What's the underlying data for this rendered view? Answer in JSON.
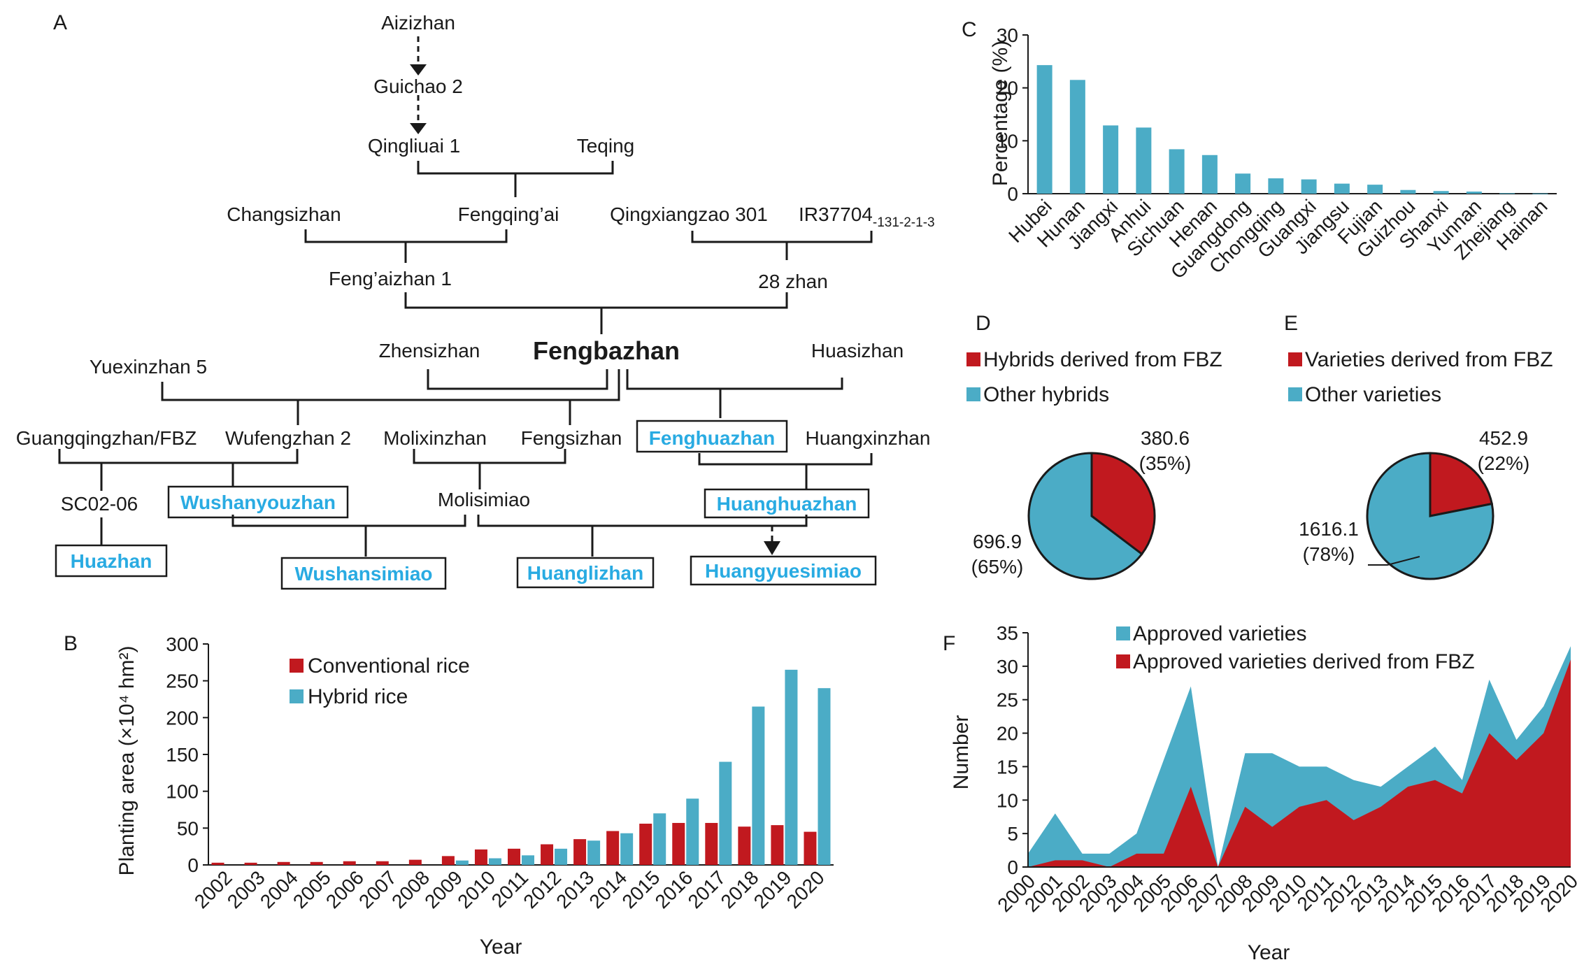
{
  "colors": {
    "red": "#c1191f",
    "blue": "#4bacc6",
    "highlight": "#29abe2",
    "line": "#1a1a1a"
  },
  "panels": {
    "A": "A",
    "B": "B",
    "C": "C",
    "D": "D",
    "E": "E",
    "F": "F"
  },
  "pedigree": {
    "root": "Fengbazhan",
    "nodes": {
      "aizizhan": "Aizizhan",
      "guichao2": "Guichao 2",
      "qingliuai1": "Qingliuai 1",
      "teqing": "Teqing",
      "changsizhan": "Changsizhan",
      "fengqingai": "Fengqing’ai",
      "qingxiangzao301": "Qingxiangzao 301",
      "ir37704": "IR37704",
      "ir37704_sub": "-131-2-1-3",
      "fengaizhan1": "Feng’aizhan 1",
      "zhan28": "28 zhan",
      "zhensizhan": "Zhensizhan",
      "huasizhan": "Huasizhan",
      "yuexinzhan5": "Yuexinzhan 5",
      "guangqingzhan": "Guangqingzhan/FBZ",
      "wufengzhan2": "Wufengzhan 2",
      "molixinzhan": "Molixinzhan",
      "fengsizhan": "Fengsizhan",
      "fenghuazhan": "Fenghuazhan",
      "huangxinzhan": "Huangxinzhan",
      "sc0206": "SC02-06",
      "wushanyouzhan": "Wushanyouzhan",
      "molisimiao": "Molisimiao",
      "huanghuazhan": "Huanghuazhan",
      "huazhan": "Huazhan",
      "wushansimiao": "Wushansimiao",
      "huanglizhan": "Huanglizhan",
      "huangyuesimiao": "Huangyuesimiao"
    }
  },
  "chart_data": [
    {
      "panel": "B",
      "type": "bar",
      "categories": [
        "2002",
        "2003",
        "2004",
        "2005",
        "2006",
        "2007",
        "2008",
        "2009",
        "2010",
        "2011",
        "2012",
        "2013",
        "2014",
        "2015",
        "2016",
        "2017",
        "2018",
        "2019",
        "2020"
      ],
      "series": [
        {
          "name": "Conventional rice",
          "color": "#c1191f",
          "values": [
            3,
            3,
            4,
            4,
            5,
            5,
            7,
            12,
            21,
            22,
            28,
            35,
            46,
            56,
            57,
            57,
            52,
            54,
            45
          ]
        },
        {
          "name": "Hybrid rice",
          "color": "#4bacc6",
          "values": [
            0,
            0,
            0,
            0,
            0,
            0,
            0,
            6,
            9,
            13,
            22,
            33,
            43,
            70,
            90,
            140,
            215,
            265,
            240
          ]
        }
      ],
      "xlabel": "Year",
      "ylabel": "Planting area (×10⁴ hm²)",
      "ylim": [
        0,
        300
      ],
      "yticks": [
        "0",
        "50",
        "100",
        "150",
        "200",
        "250",
        "300"
      ],
      "legend": "top-center"
    },
    {
      "panel": "C",
      "type": "bar",
      "categories": [
        "Hubei",
        "Hunan",
        "Jiangxi",
        "Anhui",
        "Sichuan",
        "Henan",
        "Guangdong",
        "Chongqing",
        "Guangxi",
        "Jiangsu",
        "Fujian",
        "Guizhou",
        "Shanxi",
        "Yunnan",
        "Zhejiang",
        "Hainan"
      ],
      "values": [
        24.3,
        21.5,
        12.9,
        12.5,
        8.4,
        7.3,
        3.8,
        2.9,
        2.7,
        1.9,
        1.7,
        0.7,
        0.5,
        0.4,
        0.1,
        0.05
      ],
      "ylabel": "Percentage (%)",
      "ylim": [
        0,
        30
      ],
      "yticks": [
        "0",
        "10",
        "20",
        "30"
      ]
    },
    {
      "panel": "D",
      "type": "pie",
      "legend": [
        "Hybrids derived from FBZ",
        "Other hybrids"
      ],
      "values": [
        380.6,
        696.9
      ],
      "value_labels": [
        "380.6",
        "696.9"
      ],
      "pct_labels": [
        "(35%)",
        "(65%)"
      ],
      "colors": [
        "#c1191f",
        "#4bacc6"
      ]
    },
    {
      "panel": "E",
      "type": "pie",
      "legend": [
        "Varieties derived from FBZ",
        "Other varieties"
      ],
      "values": [
        452.9,
        1616.1
      ],
      "value_labels": [
        "452.9",
        "1616.1"
      ],
      "pct_labels": [
        "(22%)",
        "(78%)"
      ],
      "colors": [
        "#c1191f",
        "#4bacc6"
      ]
    },
    {
      "panel": "F",
      "type": "area",
      "x": [
        "2000",
        "2001",
        "2002",
        "2003",
        "2004",
        "2005",
        "2006",
        "2007",
        "2008",
        "2009",
        "2010",
        "2011",
        "2012",
        "2013",
        "2014",
        "2015",
        "2016",
        "2017",
        "2018",
        "2019",
        "2020"
      ],
      "series": [
        {
          "name": "Approved varieties",
          "color": "#4bacc6",
          "values": [
            2,
            8,
            2,
            2,
            5,
            16,
            27,
            0,
            17,
            17,
            15,
            15,
            13,
            12,
            15,
            18,
            13,
            28,
            19,
            24,
            33
          ]
        },
        {
          "name": "Approved varieties derived from FBZ",
          "color": "#c1191f",
          "values": [
            0,
            1,
            1,
            0,
            2,
            2,
            12,
            0,
            9,
            6,
            9,
            10,
            7,
            9,
            12,
            13,
            11,
            20,
            16,
            20,
            31
          ]
        }
      ],
      "xlabel": "Year",
      "ylabel": "Number",
      "ylim": [
        0,
        35
      ],
      "yticks": [
        "0",
        "5",
        "10",
        "15",
        "20",
        "25",
        "30",
        "35"
      ],
      "legend": "top-left"
    }
  ]
}
